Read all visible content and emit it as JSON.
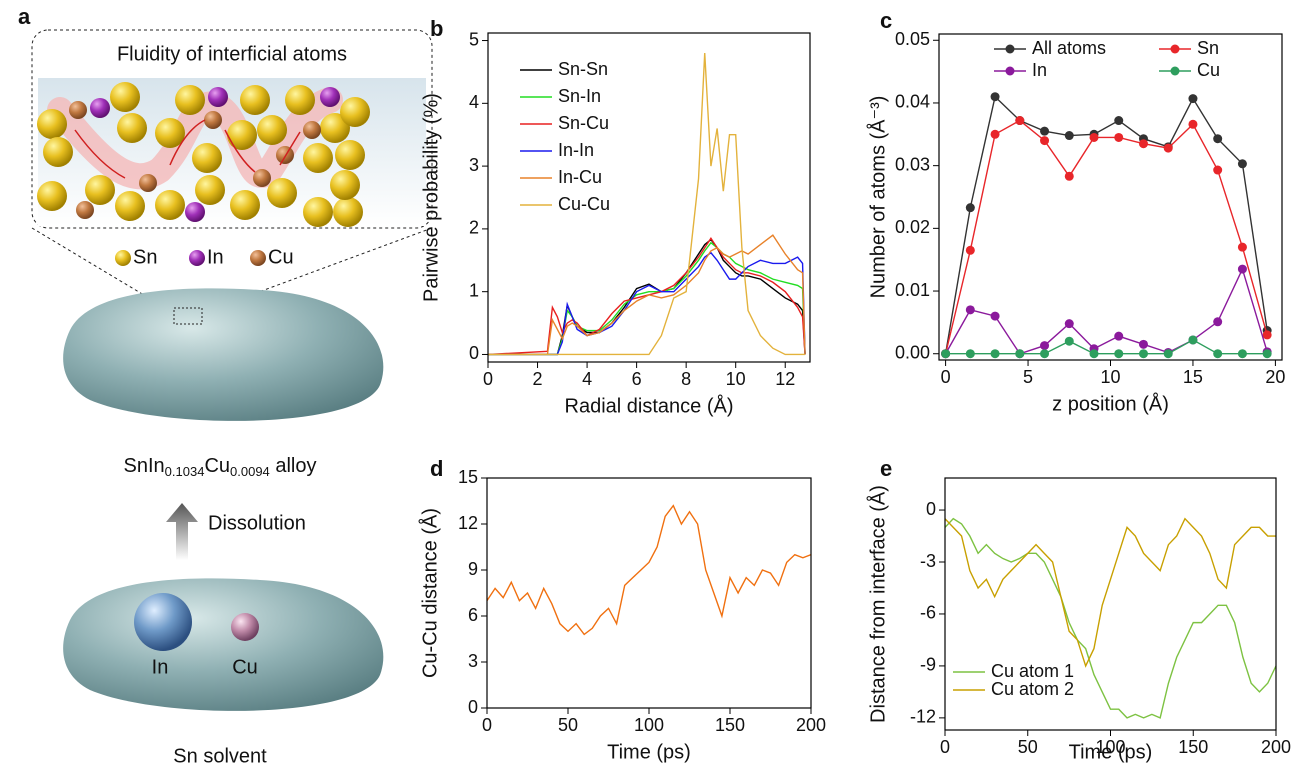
{
  "panel_a": {
    "panel": "a",
    "title": "Fluidity of interficial atoms",
    "legend": [
      "Sn",
      "In",
      "Cu"
    ],
    "alloy_label": [
      "SnIn",
      "0.1034",
      "Cu",
      "0.0094",
      " alloy"
    ],
    "arrow_label": "Dissolution",
    "solute_labels": [
      "In",
      "Cu"
    ],
    "solvent_label": "Sn solvent"
  },
  "chart_data": [
    {
      "type": "line",
      "panel": "b",
      "xlabel": "Radial distance (Å)",
      "ylabel": "Pairwise probability (%)",
      "xlim": [
        0,
        13
      ],
      "ylim": [
        -0.12,
        5.12
      ],
      "xticks": [
        0,
        2,
        4,
        6,
        8,
        10,
        12
      ],
      "yticks": [
        0,
        1,
        2,
        3,
        4,
        5
      ],
      "legend": "upper left",
      "x": [
        0,
        2.4,
        2.6,
        2.8,
        3.0,
        3.2,
        3.4,
        3.6,
        4.0,
        4.5,
        5.0,
        5.5,
        6.0,
        6.5,
        7.0,
        7.5,
        8.0,
        8.5,
        8.75,
        9.0,
        9.25,
        9.5,
        9.75,
        10.0,
        10.25,
        10.5,
        11.0,
        11.5,
        12.0,
        12.5,
        12.7,
        12.8
      ],
      "series": [
        {
          "name": "Sn-Sn",
          "color": "#000000",
          "values": [
            0,
            0,
            0,
            0,
            0.3,
            0.78,
            0.6,
            0.45,
            0.35,
            0.35,
            0.5,
            0.75,
            1.05,
            1.12,
            1.0,
            1.05,
            1.3,
            1.6,
            1.75,
            1.83,
            1.7,
            1.5,
            1.4,
            1.3,
            1.25,
            1.25,
            1.2,
            1.05,
            0.9,
            0.8,
            0.7,
            0
          ]
        },
        {
          "name": "Sn-In",
          "color": "#22dd22",
          "values": [
            0,
            0,
            0,
            0,
            0.25,
            0.7,
            0.6,
            0.45,
            0.38,
            0.38,
            0.55,
            0.8,
            0.95,
            1.0,
            1.0,
            1.05,
            1.25,
            1.5,
            1.65,
            1.78,
            1.7,
            1.6,
            1.55,
            1.45,
            1.4,
            1.35,
            1.3,
            1.2,
            1.15,
            1.1,
            1.05,
            0
          ]
        },
        {
          "name": "Sn-Cu",
          "color": "#e82020",
          "values": [
            0,
            0.05,
            0.75,
            0.6,
            0.35,
            0.5,
            0.55,
            0.5,
            0.3,
            0.4,
            0.65,
            0.85,
            0.9,
            0.95,
            1.0,
            1.1,
            1.3,
            1.55,
            1.7,
            1.85,
            1.7,
            1.55,
            1.45,
            1.35,
            1.3,
            1.3,
            1.25,
            1.15,
            1.0,
            0.75,
            0.6,
            0
          ]
        },
        {
          "name": "In-In",
          "color": "#1a1aee",
          "values": [
            0,
            0,
            0,
            0,
            0.2,
            0.8,
            0.6,
            0.4,
            0.3,
            0.35,
            0.45,
            0.7,
            1.0,
            1.1,
            1.0,
            1.0,
            1.2,
            1.4,
            1.55,
            1.62,
            1.5,
            1.35,
            1.2,
            1.2,
            1.3,
            1.4,
            1.5,
            1.45,
            1.45,
            1.55,
            1.45,
            0
          ]
        },
        {
          "name": "In-Cu",
          "color": "#e8822a",
          "values": [
            0,
            0,
            0.55,
            0.4,
            0.25,
            0.45,
            0.5,
            0.45,
            0.3,
            0.35,
            0.5,
            0.7,
            0.85,
            0.95,
            0.9,
            0.95,
            1.1,
            1.3,
            1.5,
            1.65,
            1.7,
            1.6,
            1.55,
            1.6,
            1.65,
            1.6,
            1.75,
            1.9,
            1.6,
            1.35,
            1.3,
            0
          ]
        },
        {
          "name": "Cu-Cu",
          "color": "#e3b23c",
          "values": [
            0,
            0,
            0,
            0,
            0,
            0,
            0,
            0,
            0,
            0,
            0,
            0,
            0,
            0,
            0.3,
            0.9,
            1.0,
            2.8,
            4.8,
            3.0,
            3.6,
            2.6,
            3.5,
            3.5,
            1.7,
            0.7,
            0.3,
            0.1,
            0,
            0,
            0,
            0
          ]
        }
      ]
    },
    {
      "type": "line",
      "panel": "c",
      "xlabel": "z position (Å)",
      "ylabel": "Number of atoms (Å⁻³)",
      "markers": true,
      "xlim": [
        -0.4,
        20.4
      ],
      "ylim": [
        -0.001,
        0.051
      ],
      "xticks": [
        0,
        5,
        10,
        15,
        20
      ],
      "yticks": [
        {
          "value": 0,
          "label": "0.00"
        },
        {
          "value": 0.01,
          "label": "0.01"
        },
        {
          "value": 0.02,
          "label": "0.02"
        },
        {
          "value": 0.03,
          "label": "0.03"
        },
        {
          "value": 0.04,
          "label": "0.04"
        },
        {
          "value": 0.05,
          "label": "0.05"
        }
      ],
      "legend": "upper center",
      "x": [
        0,
        1.5,
        3,
        4.5,
        6,
        7.5,
        9,
        10.5,
        12,
        13.5,
        15,
        16.5,
        18,
        19.5
      ],
      "series": [
        {
          "name": "All atoms",
          "color": "#333333",
          "values": [
            0,
            0.0233,
            0.041,
            0.0372,
            0.0355,
            0.0348,
            0.035,
            0.0372,
            0.0343,
            0.033,
            0.0407,
            0.0343,
            0.0303,
            0.0037
          ]
        },
        {
          "name": "Sn",
          "color": "#e8262a",
          "values": [
            0,
            0.0165,
            0.035,
            0.0372,
            0.034,
            0.0283,
            0.0345,
            0.0345,
            0.0335,
            0.0328,
            0.0366,
            0.0293,
            0.017,
            0.003
          ]
        },
        {
          "name": "In",
          "color": "#8b1a9c",
          "values": [
            0,
            0.007,
            0.006,
            0,
            0.0013,
            0.0048,
            0.0008,
            0.0028,
            0.0015,
            0.0002,
            0.0022,
            0.0051,
            0.0135,
            0.0003
          ]
        },
        {
          "name": "Cu",
          "color": "#2e9e5e",
          "values": [
            0,
            0,
            0,
            0,
            0,
            0.002,
            0,
            0,
            0,
            0,
            0.0022,
            0,
            0,
            0
          ]
        }
      ]
    },
    {
      "type": "line",
      "panel": "d",
      "xlabel": "Time (ps)",
      "ylabel": "Cu-Cu distance (Å)",
      "xlim": [
        0,
        200
      ],
      "ylim": [
        0,
        15
      ],
      "xticks": [
        0,
        50,
        100,
        150,
        200
      ],
      "yticks": [
        0,
        3,
        6,
        9,
        12,
        15
      ],
      "x": [
        0,
        5,
        10,
        15,
        20,
        25,
        30,
        35,
        40,
        45,
        50,
        55,
        60,
        65,
        70,
        75,
        80,
        85,
        90,
        95,
        100,
        105,
        110,
        115,
        120,
        125,
        130,
        135,
        140,
        145,
        150,
        155,
        160,
        165,
        170,
        175,
        180,
        185,
        190,
        195,
        200
      ],
      "series": [
        {
          "color": "#f07010",
          "values": [
            7,
            7.8,
            7.2,
            8.2,
            7.0,
            7.5,
            6.5,
            7.8,
            6.8,
            5.5,
            5.0,
            5.5,
            4.8,
            5.2,
            6.0,
            6.5,
            5.5,
            8.0,
            8.5,
            9.0,
            9.5,
            10.5,
            12.5,
            13.2,
            12.0,
            12.8,
            12.0,
            9.0,
            7.5,
            6.0,
            8.5,
            7.5,
            8.5,
            8.0,
            9.0,
            8.8,
            8.0,
            9.5,
            10.0,
            9.8,
            10.0
          ]
        }
      ]
    },
    {
      "type": "line",
      "panel": "e",
      "xlabel": "Time (ps)",
      "ylabel": "Distance from interface (Å)",
      "xlim": [
        0,
        200
      ],
      "ylim": [
        -12.7,
        1.85
      ],
      "xticks": [
        0,
        50,
        100,
        150,
        200
      ],
      "yticks": [
        0,
        -3,
        -6,
        -9,
        -12
      ],
      "legend": "lower left",
      "x": [
        0,
        5,
        10,
        15,
        20,
        25,
        30,
        35,
        40,
        45,
        50,
        55,
        60,
        65,
        70,
        75,
        80,
        85,
        90,
        95,
        100,
        105,
        110,
        115,
        120,
        125,
        130,
        135,
        140,
        145,
        150,
        155,
        160,
        165,
        170,
        175,
        180,
        185,
        190,
        195,
        200
      ],
      "series": [
        {
          "name": "Cu atom 1",
          "color": "#7dc242",
          "values": [
            -1,
            -0.5,
            -0.8,
            -1.5,
            -2.5,
            -2.0,
            -2.5,
            -2.8,
            -3.0,
            -2.8,
            -2.5,
            -2.5,
            -3.0,
            -4.0,
            -5.0,
            -6.5,
            -7.5,
            -8.0,
            -9.5,
            -10.5,
            -11.5,
            -11.5,
            -12.0,
            -11.8,
            -12.0,
            -11.8,
            -12.0,
            -10.0,
            -8.5,
            -7.5,
            -6.5,
            -6.5,
            -6.0,
            -5.5,
            -5.5,
            -6.5,
            -8.5,
            -10.0,
            -10.5,
            -10.0,
            -9.0
          ]
        },
        {
          "name": "Cu atom 2",
          "color": "#c8a000",
          "values": [
            -0.5,
            -1.0,
            -1.5,
            -3.5,
            -4.5,
            -4.0,
            -5.0,
            -4.0,
            -3.5,
            -3.0,
            -2.5,
            -2.0,
            -2.5,
            -3.0,
            -5.0,
            -7.0,
            -7.5,
            -9.0,
            -8.0,
            -5.5,
            -4.0,
            -2.5,
            -1.0,
            -1.5,
            -2.5,
            -3.0,
            -3.5,
            -2.0,
            -1.5,
            -0.5,
            -1.0,
            -1.5,
            -2.5,
            -4.0,
            -4.5,
            -2.0,
            -1.5,
            -1.0,
            -1.0,
            -1.5,
            -1.5
          ]
        }
      ]
    }
  ]
}
